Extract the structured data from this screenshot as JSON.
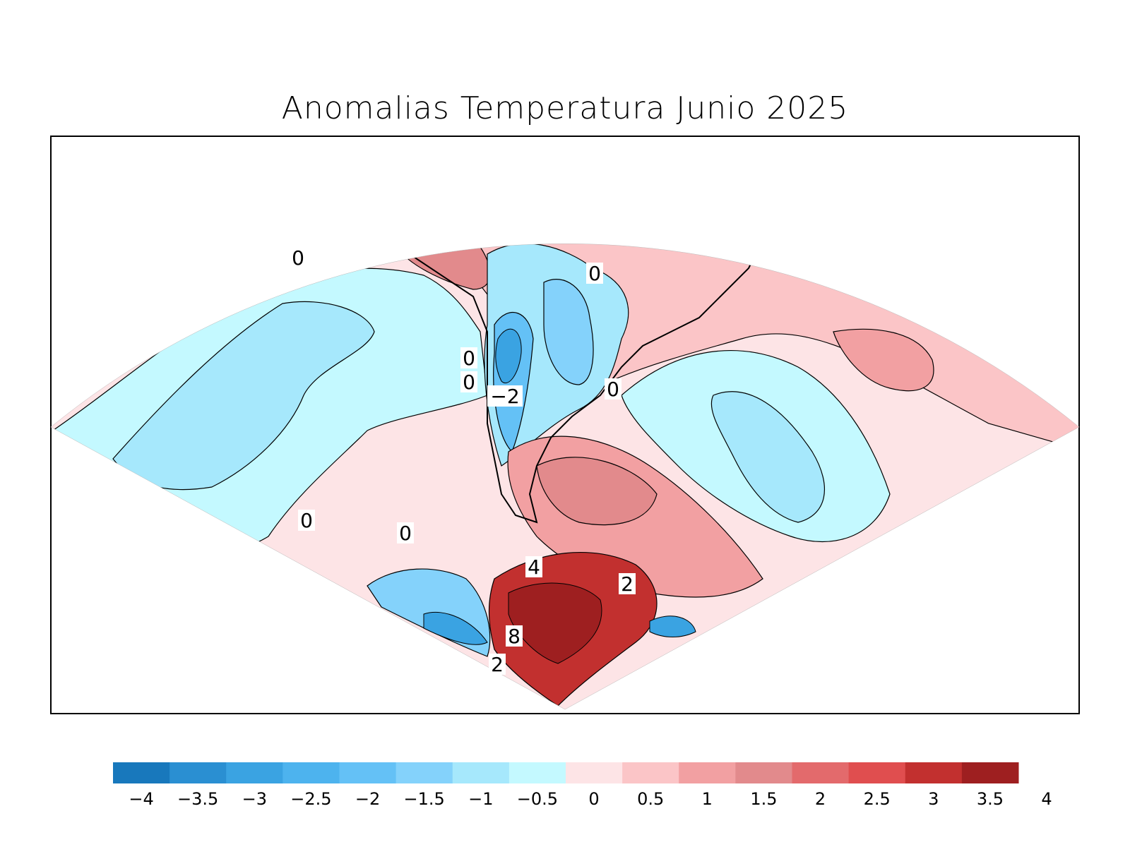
{
  "title": "Anomalias Temperatura Junio 2025",
  "colorbar": {
    "colors": [
      "#1878bc",
      "#2a8fd2",
      "#3aa3e2",
      "#4db3ee",
      "#64c1f6",
      "#84d2fb",
      "#a6e8fc",
      "#c4f9ff",
      "#fde4e6",
      "#fbc5c7",
      "#f2a0a2",
      "#e28a8c",
      "#e36a6c",
      "#e04e4f",
      "#c2302f",
      "#9e1f20"
    ],
    "labels": [
      "−4",
      "−3.5",
      "−3",
      "−2.5",
      "−2",
      "−1.5",
      "−1",
      "−0.5",
      "0",
      "0.5",
      "1",
      "1.5",
      "2",
      "2.5",
      "3",
      "3.5",
      "4"
    ]
  },
  "contour_labels": [
    "0",
    "0",
    "0",
    "0",
    "0",
    "0",
    "0",
    "−2",
    "4",
    "2",
    "8",
    "2"
  ],
  "regions": {
    "ocean_outer": "#fde4e6",
    "south_atlantic_cold": "#c4f9ff",
    "pacific_cold": "#c4f9ff",
    "pacific_cold_core": "#a6e8fc",
    "brazil_warm": "#fbc5c7",
    "argentina_cold": "#a6e8fc",
    "argentina_cold_core": "#64c1f6",
    "patagonia_warm": "#e28a8c",
    "antarctic_hot": "#9e1f20"
  }
}
